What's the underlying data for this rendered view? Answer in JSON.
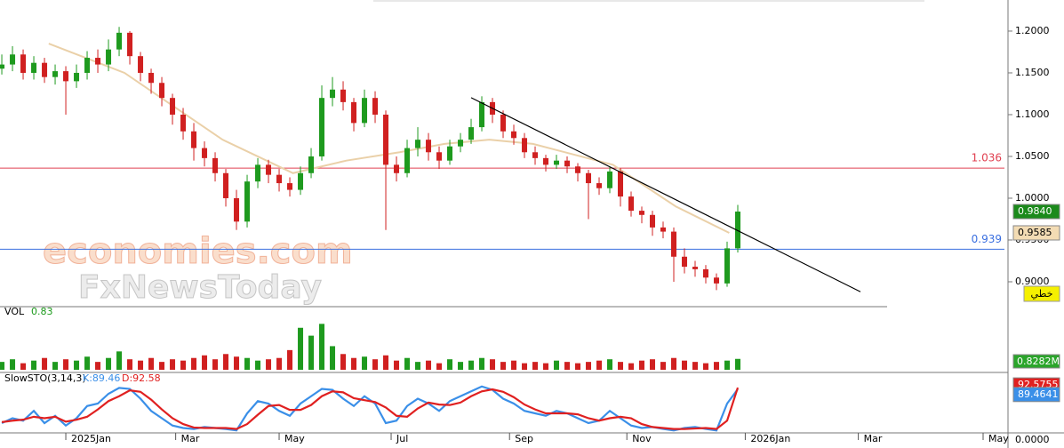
{
  "chart_data": [
    {
      "type": "candlestick",
      "open": [
        1.155,
        1.16,
        1.172,
        1.15,
        1.162,
        1.145,
        1.152,
        1.14,
        1.15,
        1.168,
        1.16,
        1.178,
        1.198,
        1.17,
        1.15,
        1.138,
        1.12,
        1.1,
        1.08,
        1.06,
        1.048,
        1.03,
        1.0,
        0.972,
        1.02,
        1.04,
        1.028,
        1.018,
        1.01,
        1.03,
        1.05,
        1.12,
        1.13,
        1.115,
        1.09,
        1.12,
        1.1,
        1.04,
        1.03,
        1.06,
        1.07,
        1.055,
        1.045,
        1.062,
        1.07,
        1.085,
        1.115,
        1.1,
        1.08,
        1.072,
        1.055,
        1.048,
        1.04,
        1.045,
        1.038,
        1.03,
        1.018,
        1.012,
        1.032,
        1.002,
        0.985,
        0.98,
        0.965,
        0.96,
        0.93,
        0.918,
        0.915,
        0.905,
        0.898,
        0.94
      ],
      "high": [
        1.172,
        1.182,
        1.178,
        1.17,
        1.168,
        1.16,
        1.158,
        1.16,
        1.176,
        1.178,
        1.19,
        1.205,
        1.2,
        1.175,
        1.155,
        1.145,
        1.125,
        1.108,
        1.09,
        1.068,
        1.055,
        1.035,
        1.01,
        1.028,
        1.048,
        1.046,
        1.035,
        1.025,
        1.038,
        1.06,
        1.135,
        1.145,
        1.14,
        1.12,
        1.13,
        1.128,
        1.105,
        1.05,
        1.07,
        1.085,
        1.078,
        1.062,
        1.07,
        1.078,
        1.095,
        1.122,
        1.12,
        1.105,
        1.088,
        1.078,
        1.062,
        1.052,
        1.052,
        1.05,
        1.042,
        1.034,
        1.025,
        1.038,
        1.036,
        1.008,
        0.99,
        0.985,
        0.972,
        0.965,
        0.94,
        0.925,
        0.92,
        0.91,
        0.948,
        0.992
      ],
      "low": [
        1.148,
        1.152,
        1.142,
        1.142,
        1.138,
        1.136,
        1.1,
        1.132,
        1.142,
        1.15,
        1.152,
        1.17,
        1.16,
        1.14,
        1.125,
        1.11,
        1.088,
        1.07,
        1.045,
        1.038,
        1.02,
        0.99,
        0.962,
        0.965,
        1.012,
        1.018,
        1.008,
        1.002,
        1.004,
        1.024,
        1.045,
        1.11,
        1.105,
        1.08,
        1.085,
        1.09,
        0.962,
        1.02,
        1.025,
        1.05,
        1.045,
        1.035,
        1.04,
        1.055,
        1.065,
        1.08,
        1.09,
        1.072,
        1.064,
        1.048,
        1.04,
        1.032,
        1.035,
        1.03,
        1.02,
        0.975,
        1.004,
        1.006,
        0.99,
        0.978,
        0.97,
        0.955,
        0.952,
        0.9,
        0.91,
        0.906,
        0.898,
        0.89,
        0.894,
        0.935
      ],
      "close": [
        1.16,
        1.172,
        1.15,
        1.162,
        1.145,
        1.152,
        1.14,
        1.15,
        1.168,
        1.16,
        1.178,
        1.198,
        1.17,
        1.15,
        1.138,
        1.12,
        1.1,
        1.08,
        1.06,
        1.048,
        1.03,
        1.0,
        0.972,
        1.02,
        1.04,
        1.028,
        1.018,
        1.01,
        1.03,
        1.05,
        1.12,
        1.13,
        1.115,
        1.09,
        1.12,
        1.1,
        1.04,
        1.03,
        1.06,
        1.07,
        1.055,
        1.045,
        1.062,
        1.07,
        1.085,
        1.115,
        1.1,
        1.08,
        1.072,
        1.055,
        1.048,
        1.04,
        1.045,
        1.038,
        1.03,
        1.018,
        1.012,
        1.032,
        1.002,
        0.985,
        0.98,
        0.965,
        0.96,
        0.93,
        0.918,
        0.915,
        0.905,
        0.898,
        0.94,
        0.984
      ],
      "up_color": "#1e9a1e",
      "down_color": "#d02020",
      "xlim": [
        -0.17,
        94
      ],
      "xticks": [
        {
          "value": 6,
          "label": "2025Jan"
        },
        {
          "value": 16.3,
          "label": "Mar"
        },
        {
          "value": 26,
          "label": "May"
        },
        {
          "value": 36.5,
          "label": "Jul"
        },
        {
          "value": 47.6,
          "label": "Sep"
        },
        {
          "value": 58.6,
          "label": "Nov"
        },
        {
          "value": 69.7,
          "label": "2026Jan"
        },
        {
          "value": 80.3,
          "label": "Mar"
        },
        {
          "value": 92,
          "label": "May"
        }
      ],
      "ylim": [
        0.8702,
        1.2372
      ],
      "yticks": [
        {
          "value": 1.2,
          "label": "1.2000"
        },
        {
          "value": 1.15,
          "label": "1.1500"
        },
        {
          "value": 1.1,
          "label": "1.1000"
        },
        {
          "value": 1.05,
          "label": "1.0500"
        },
        {
          "value": 1.0,
          "label": "1.0000"
        },
        {
          "value": 0.95,
          "label": "0.9500"
        },
        {
          "value": 0.9,
          "label": "0.9000"
        }
      ],
      "moving_average": {
        "color": "#ead0a8",
        "x": [
          4.4,
          11.5,
          20.7,
          27.3,
          32.3,
          37.3,
          41.5,
          45.7,
          49.8,
          57.3,
          63.2,
          68.2
        ],
        "values": [
          1.185,
          1.15,
          1.07,
          1.03,
          1.045,
          1.055,
          1.065,
          1.07,
          1.065,
          1.04,
          0.99,
          0.9585
        ]
      },
      "trendline": {
        "color": "#000000",
        "x": [
          44,
          80.5
        ],
        "values": [
          1.1203,
          0.888
        ]
      },
      "hlines": [
        {
          "value": 1.036,
          "color": "#e04050"
        },
        {
          "value": 0.939,
          "color": "#3a6fe0"
        }
      ],
      "last_price": {
        "value": 0.984,
        "label": "0.9840"
      },
      "ma_last": {
        "value": 0.9585,
        "label": "0.9585"
      },
      "scale_label": "خطي",
      "watermarks": [
        "economies.com",
        "FxNewsToday"
      ]
    },
    {
      "type": "volume",
      "label": "VOL",
      "values": [
        0.6,
        0.8,
        0.5,
        0.7,
        0.9,
        0.6,
        0.8,
        0.7,
        1.0,
        0.6,
        0.9,
        1.4,
        0.8,
        0.7,
        0.9,
        0.6,
        0.8,
        0.7,
        0.9,
        1.1,
        0.8,
        1.2,
        1.0,
        0.9,
        0.7,
        0.8,
        0.9,
        1.5,
        3.2,
        2.6,
        3.5,
        1.8,
        1.2,
        0.9,
        1.0,
        0.8,
        1.1,
        0.7,
        0.9,
        0.6,
        0.7,
        0.5,
        0.8,
        0.6,
        0.7,
        0.9,
        0.8,
        0.6,
        0.7,
        0.5,
        0.6,
        0.5,
        0.7,
        0.6,
        0.5,
        0.6,
        0.7,
        0.8,
        0.6,
        0.5,
        0.7,
        0.8,
        0.6,
        0.9,
        0.7,
        0.6,
        0.5,
        0.6,
        0.7,
        0.83
      ],
      "ylim": [
        0,
        4.2
      ],
      "axis_label": "0.8282M"
    },
    {
      "type": "stochastic",
      "title": "SlowSTO(3,14,3)",
      "k_label": "K:89.46",
      "d_label": "D:92.58",
      "series": [
        {
          "color": "#3a8fe8",
          "values": [
            20,
            30,
            25,
            45,
            20,
            35,
            15,
            30,
            55,
            60,
            80,
            92,
            90,
            70,
            45,
            30,
            15,
            10,
            8,
            12,
            10,
            8,
            5,
            40,
            65,
            60,
            45,
            35,
            60,
            75,
            90,
            88,
            70,
            55,
            75,
            60,
            20,
            25,
            55,
            70,
            60,
            45,
            65,
            75,
            85,
            95,
            88,
            70,
            60,
            45,
            40,
            35,
            45,
            40,
            30,
            20,
            25,
            45,
            30,
            15,
            10,
            12,
            8,
            5,
            10,
            12,
            8,
            5,
            60,
            89.46
          ]
        },
        {
          "color": "#e02020",
          "values": [
            22,
            25,
            27,
            33,
            30,
            33,
            23,
            27,
            33,
            48,
            65,
            75,
            87,
            84,
            68,
            48,
            30,
            18,
            11,
            10,
            10,
            10,
            8,
            18,
            37,
            55,
            57,
            47,
            47,
            57,
            75,
            85,
            83,
            71,
            67,
            63,
            52,
            35,
            33,
            50,
            62,
            58,
            57,
            62,
            75,
            85,
            89,
            84,
            73,
            58,
            48,
            40,
            40,
            40,
            38,
            30,
            25,
            30,
            33,
            30,
            18,
            12,
            10,
            8,
            8,
            9,
            10,
            8,
            25,
            92.58
          ]
        }
      ],
      "ylim": [
        0,
        100
      ],
      "yticks": [
        {
          "value": 0,
          "label": "0.0000"
        }
      ],
      "last_values": [
        92.5755,
        89.4641
      ]
    }
  ]
}
